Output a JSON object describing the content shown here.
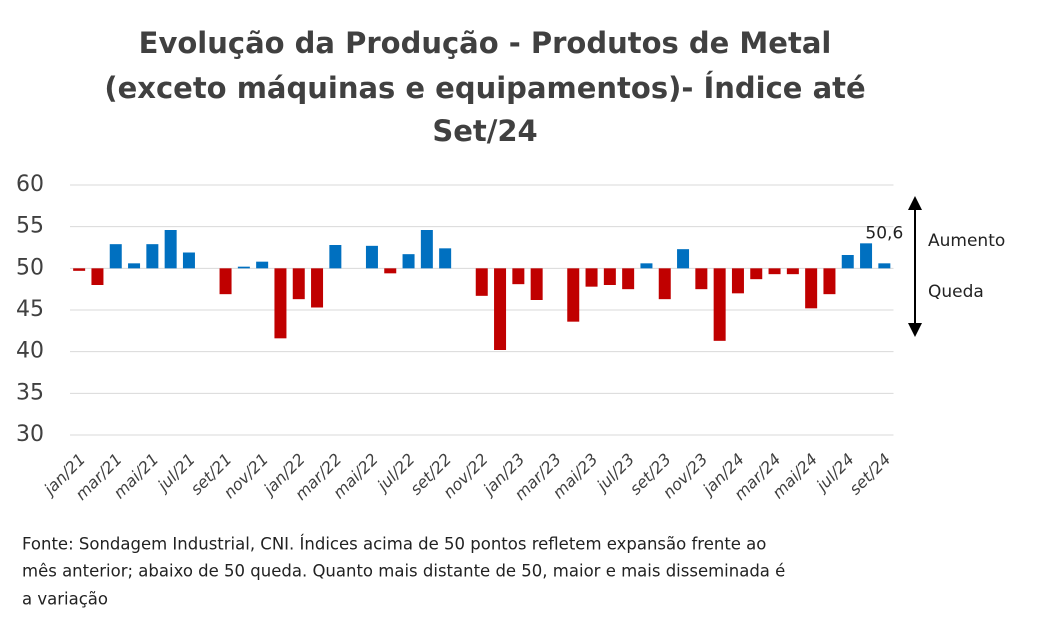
{
  "chart_data": {
    "type": "bar",
    "title": [
      "Evolução da Produção - Produtos de Metal",
      "(exceto máquinas e equipamentos)- Índice até",
      "Set/24"
    ],
    "categories": [
      "jan/21",
      null,
      "mar/21",
      null,
      "mai/21",
      null,
      "jul/21",
      null,
      "set/21",
      null,
      "nov/21",
      null,
      "jan/22",
      null,
      "mar/22",
      null,
      "mai/22",
      null,
      "jul/22",
      null,
      "set/22",
      null,
      "nov/22",
      null,
      "jan/23",
      null,
      "mar/23",
      null,
      "mai/23",
      null,
      "jul/23",
      null,
      "set/23",
      null,
      "nov/23",
      null,
      "jan/24",
      null,
      "mar/24",
      null,
      "mai/24",
      null,
      "jul/24",
      null,
      "set/24"
    ],
    "values": [
      49.7,
      48.0,
      52.9,
      50.6,
      52.9,
      54.6,
      51.9,
      50.0,
      46.9,
      50.2,
      50.8,
      41.6,
      46.3,
      45.3,
      52.8,
      50.0,
      52.7,
      49.4,
      51.7,
      54.6,
      52.4,
      50.0,
      46.7,
      40.2,
      48.1,
      46.2,
      50.0,
      43.6,
      47.8,
      48.0,
      47.5,
      50.6,
      46.3,
      52.3,
      47.5,
      41.3,
      47.0,
      48.7,
      49.3,
      49.3,
      45.2,
      46.9,
      51.6,
      53.0,
      50.6
    ],
    "value_labels": [
      null,
      null,
      null,
      null,
      null,
      null,
      null,
      null,
      null,
      null,
      null,
      null,
      null,
      null,
      null,
      null,
      null,
      null,
      null,
      null,
      null,
      null,
      null,
      null,
      null,
      null,
      null,
      null,
      null,
      null,
      null,
      null,
      null,
      null,
      null,
      null,
      null,
      null,
      null,
      null,
      null,
      null,
      null,
      null,
      "50,6"
    ],
    "bar_base": 50,
    "color_above": "#0070c0",
    "color_below": "#c00000",
    "ylim": [
      30,
      60
    ],
    "yticks": [
      30,
      35,
      40,
      45,
      50,
      55,
      60
    ],
    "grid": true,
    "annotations": [
      "Aumento",
      "Queda"
    ],
    "footnote": [
      "Fonte: Sondagem Industrial, CNI. Índices acima de 50 pontos refletem expansão frente ao",
      "mês anterior; abaixo de 50 queda. Quanto mais distante de 50, maior e mais disseminada é",
      "a variação"
    ]
  }
}
